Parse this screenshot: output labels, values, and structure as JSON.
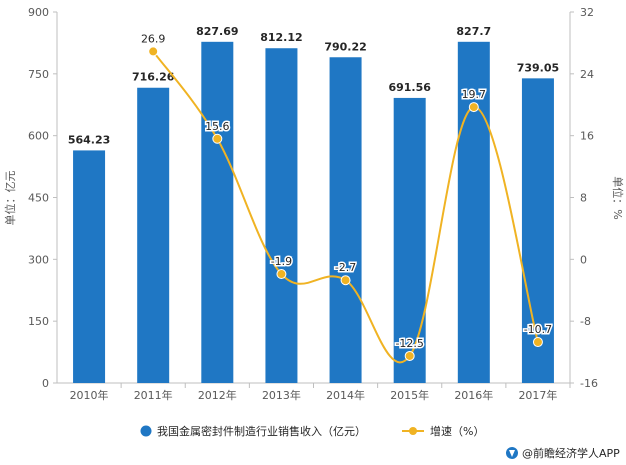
{
  "chart_data": {
    "type": "bar",
    "categories": [
      "2010年",
      "2011年",
      "2012年",
      "2013年",
      "2014年",
      "2015年",
      "2016年",
      "2017年"
    ],
    "series": [
      {
        "name": "我国金属密封件制造行业销售收入（亿元）",
        "kind": "bar",
        "axis": "left",
        "color": "#1f77c4",
        "values": [
          564.23,
          716.26,
          827.69,
          812.12,
          790.22,
          691.56,
          827.7,
          739.05
        ],
        "labels": [
          "564.23",
          "716.26",
          "827.69",
          "812.12",
          "790.22",
          "691.56",
          "827.7",
          "739.05"
        ]
      },
      {
        "name": "增速（%）",
        "kind": "line",
        "axis": "right",
        "color": "#f0b323",
        "values": [
          null,
          26.9,
          15.6,
          -1.9,
          -2.7,
          -12.5,
          19.7,
          -10.7
        ],
        "labels": [
          "",
          "26.9",
          "15.6",
          "-1.9",
          "-2.7",
          "-12.5",
          "19.7",
          "-10.7"
        ]
      }
    ],
    "y_left": {
      "label": "单位：亿元",
      "min": 0,
      "max": 900,
      "ticks": [
        "0",
        "150",
        "300",
        "450",
        "600",
        "750",
        "900"
      ]
    },
    "y_right": {
      "label": "单位：%",
      "min": -16,
      "max": 32,
      "ticks": [
        "-16",
        "-8",
        "0",
        "8",
        "16",
        "24",
        "32"
      ]
    },
    "grid": false,
    "legend_position": "bottom"
  },
  "source": {
    "icon": "qianzhan-logo-icon",
    "text": "@前瞻经济学人APP"
  }
}
